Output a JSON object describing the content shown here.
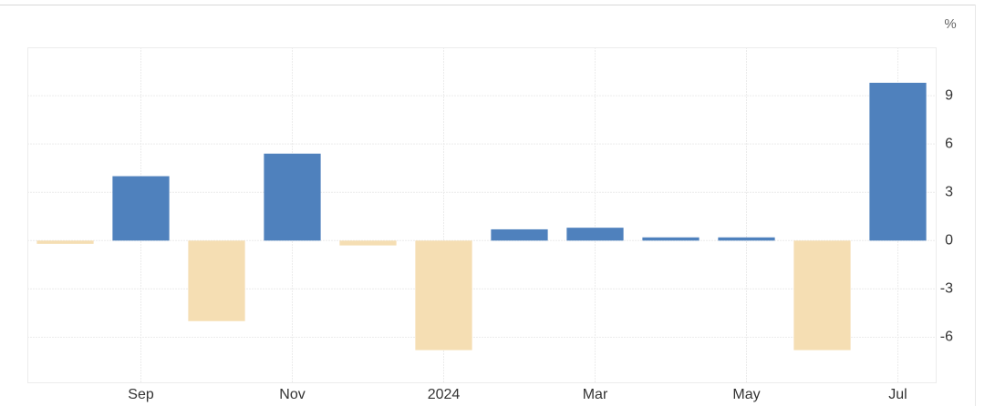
{
  "chart_data": {
    "type": "bar",
    "unit": "%",
    "categories": [
      null,
      "Sep",
      null,
      "Nov",
      null,
      "2024",
      null,
      "Mar",
      null,
      "May",
      null,
      "Jul"
    ],
    "values": [
      -0.2,
      4.0,
      -5.0,
      5.4,
      -0.3,
      -6.8,
      0.7,
      0.8,
      0.2,
      0.2,
      -6.8,
      9.8
    ],
    "positive_color": "#4f81bd",
    "negative_color": "#f5deb3",
    "ylim": [
      -8.8,
      12
    ],
    "yticks": [
      -6,
      -3,
      0,
      3,
      6,
      9
    ],
    "grid": true
  }
}
